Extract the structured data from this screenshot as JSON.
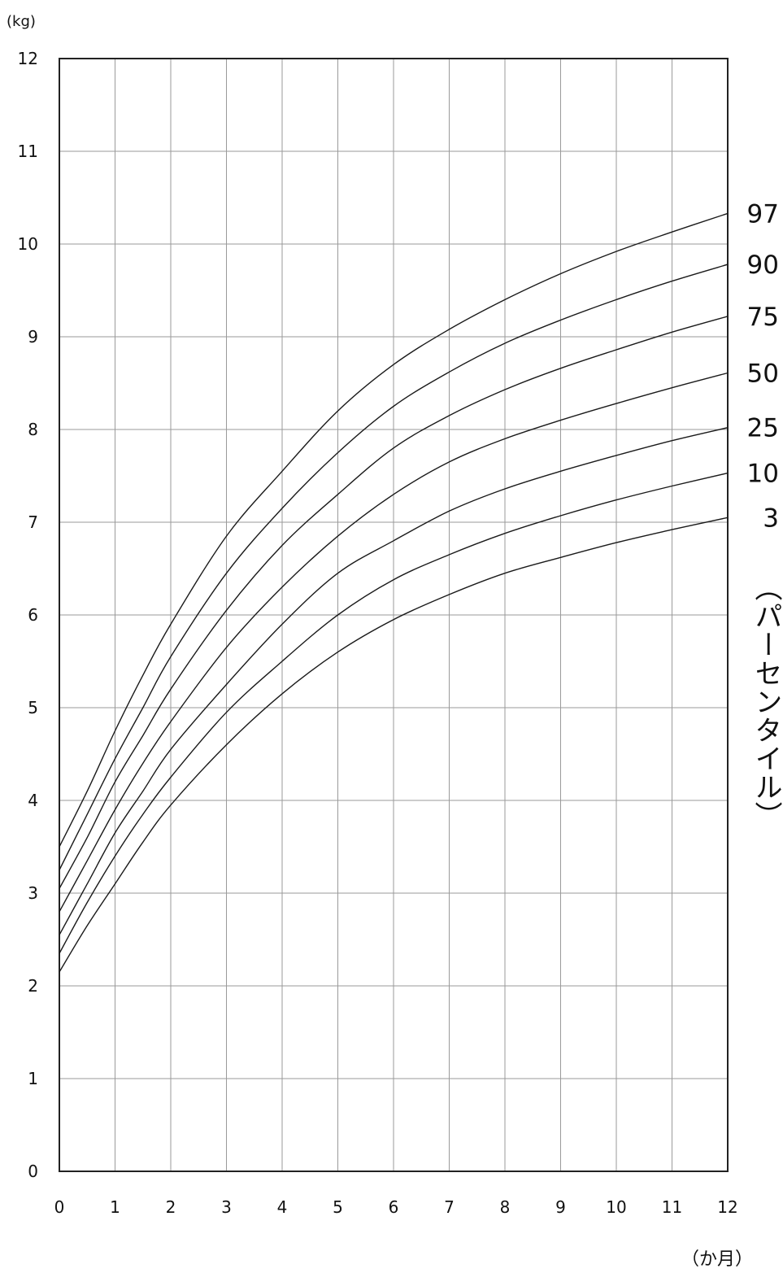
{
  "chart_data": {
    "type": "line",
    "ylabel": "(kg)",
    "xlabel": "（か月）",
    "series_axis_label": "（パーセンタイル）",
    "xlim": [
      0,
      12
    ],
    "ylim": [
      0,
      12
    ],
    "x_ticks": [
      "0",
      "1",
      "2",
      "3",
      "4",
      "5",
      "6",
      "7",
      "8",
      "9",
      "10",
      "11",
      "12"
    ],
    "y_ticks": [
      "0",
      "1",
      "2",
      "3",
      "4",
      "5",
      "6",
      "7",
      "8",
      "9",
      "10",
      "11",
      "12"
    ],
    "grid": true,
    "legend": "right, labels at line ends",
    "x": [
      0,
      0.5,
      1,
      1.5,
      2,
      3,
      4,
      5,
      6,
      7,
      8,
      9,
      10,
      11,
      12
    ],
    "series": [
      {
        "name": "97",
        "values": [
          3.5,
          4.1,
          4.75,
          5.35,
          5.9,
          6.85,
          7.55,
          8.2,
          8.7,
          9.08,
          9.4,
          9.68,
          9.92,
          10.13,
          10.33
        ]
      },
      {
        "name": "90",
        "values": [
          3.25,
          3.85,
          4.45,
          5.0,
          5.55,
          6.45,
          7.15,
          7.75,
          8.25,
          8.62,
          8.93,
          9.18,
          9.4,
          9.6,
          9.78
        ]
      },
      {
        "name": "75",
        "values": [
          3.05,
          3.6,
          4.2,
          4.7,
          5.2,
          6.05,
          6.75,
          7.3,
          7.8,
          8.15,
          8.43,
          8.66,
          8.86,
          9.05,
          9.22
        ]
      },
      {
        "name": "50",
        "values": [
          2.8,
          3.35,
          3.9,
          4.4,
          4.85,
          5.65,
          6.3,
          6.85,
          7.3,
          7.65,
          7.9,
          8.1,
          8.28,
          8.45,
          8.61
        ]
      },
      {
        "name": "25",
        "values": [
          2.55,
          3.1,
          3.65,
          4.1,
          4.55,
          5.25,
          5.9,
          6.45,
          6.8,
          7.12,
          7.36,
          7.55,
          7.72,
          7.88,
          8.02
        ]
      },
      {
        "name": "10",
        "values": [
          2.35,
          2.9,
          3.4,
          3.85,
          4.25,
          4.95,
          5.5,
          6.0,
          6.38,
          6.65,
          6.88,
          7.07,
          7.24,
          7.39,
          7.53
        ]
      },
      {
        "name": "3",
        "values": [
          2.15,
          2.65,
          3.1,
          3.55,
          3.95,
          4.6,
          5.15,
          5.6,
          5.95,
          6.22,
          6.45,
          6.62,
          6.78,
          6.92,
          7.05
        ]
      }
    ]
  }
}
